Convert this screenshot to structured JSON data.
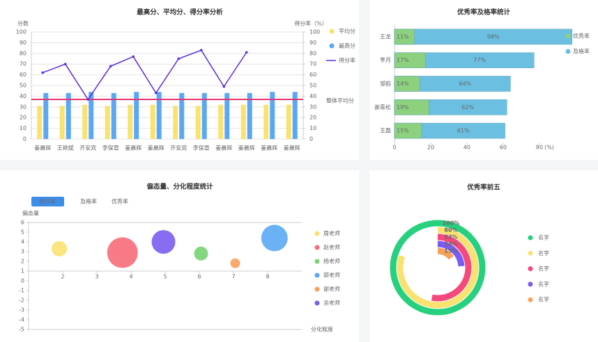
{
  "chart_data": [
    {
      "type": "combo",
      "title": "最高分、平均分、得分率分析",
      "y_label": "分数",
      "y2_label": "得分率（%）",
      "categories": [
        "姜晨辉",
        "王艳斌",
        "齐安宾",
        "李保章",
        "姜晨辉",
        "姜晨辉",
        "齐安宾",
        "李保章",
        "姜晨辉",
        "姜晨辉",
        "姜晨辉",
        "姜晨辉"
      ],
      "series": [
        {
          "name": "平均分",
          "kind": "bar",
          "color": "#f9e270",
          "values": [
            31,
            31,
            32,
            31,
            32,
            32,
            31,
            31,
            32,
            32,
            32,
            32
          ]
        },
        {
          "name": "最高分",
          "kind": "bar",
          "color": "#5aa8f5",
          "values": [
            43,
            43,
            44,
            43,
            44,
            44,
            43,
            43,
            43,
            43,
            44,
            44
          ]
        },
        {
          "name": "得分率",
          "kind": "line",
          "axis": "y2",
          "color": "#5b2be0",
          "values": [
            62,
            70,
            37,
            68,
            77,
            43,
            75,
            83,
            49,
            81,
            null,
            null
          ]
        }
      ],
      "ylim": [
        0,
        100
      ],
      "yticks": [
        0,
        10,
        20,
        30,
        40,
        50,
        60,
        70,
        80,
        90,
        100
      ],
      "y2lim": [
        0,
        100
      ],
      "y2ticks": [
        0,
        10,
        20,
        30,
        40,
        50,
        60,
        70,
        80,
        90,
        100
      ],
      "reference_line": {
        "label": "整体平均分",
        "value": 37,
        "color": "#e8336d"
      },
      "grid": true
    },
    {
      "type": "hbar",
      "title": "优秀率及格率统计",
      "categories": [
        "王龙",
        "李月",
        "邹韵",
        "谢青松",
        "王磊"
      ],
      "series": [
        {
          "name": "优秀率",
          "color": "#8dd17e",
          "values": [
            11,
            17,
            14,
            19,
            15
          ],
          "value_labels": [
            "11%",
            "17%",
            "14%",
            "19%",
            "15%"
          ]
        },
        {
          "name": "及格率",
          "color": "#6bbfe0",
          "values": [
            98,
            77,
            64,
            62,
            61
          ],
          "value_labels": [
            "98%",
            "77%",
            "64%",
            "62%",
            "61%"
          ]
        }
      ],
      "xlim": [
        0,
        100
      ],
      "xticks": [
        0,
        20,
        40,
        60,
        80
      ],
      "x_unit": "(%)"
    },
    {
      "type": "bubble",
      "title": "偏态量、分化程度统计",
      "tabs": [
        "得分率",
        "及格率",
        "优秀率"
      ],
      "active_tab": 0,
      "y_label": "偏态量",
      "x_label": "分化程度",
      "series": [
        {
          "name": "周老师",
          "color": "#f9e270",
          "x": 1.9,
          "y": 3.3,
          "size": 22
        },
        {
          "name": "赵老师",
          "color": "#f76b7a",
          "x": 3.75,
          "y": 2.9,
          "size": 44
        },
        {
          "name": "杨老师",
          "color": "#76d373",
          "x": 6.05,
          "y": 2.8,
          "size": 20
        },
        {
          "name": "郭老师",
          "color": "#5aa8f5",
          "x": 8.2,
          "y": 4.4,
          "size": 38
        },
        {
          "name": "谢老师",
          "color": "#f9a15a",
          "x": 7.05,
          "y": 1.8,
          "size": 14
        },
        {
          "name": "余老师",
          "color": "#7b5cf0",
          "x": 4.95,
          "y": 4.0,
          "size": 34
        }
      ],
      "xlim": [
        1,
        9
      ],
      "xticks": [
        2,
        3,
        4,
        5,
        6,
        7,
        8
      ],
      "ylim": [
        -5,
        6
      ],
      "yticks": [
        -5,
        -4,
        -3,
        -2,
        -1,
        0,
        1,
        2,
        3,
        4,
        5,
        6
      ],
      "x_axis_position": 1
    },
    {
      "type": "radial",
      "title": "优秀率前五",
      "categories": [
        "名字",
        "名字",
        "名字",
        "名字",
        "名字"
      ],
      "values": [
        100,
        80,
        53,
        24,
        15
      ],
      "value_labels": [
        "100%",
        "80%",
        "53%",
        "24%",
        "15%"
      ],
      "colors": [
        "#27d07e",
        "#f9e270",
        "#f5487d",
        "#7c5cf0",
        "#f9a15a"
      ],
      "max": 100
    }
  ]
}
